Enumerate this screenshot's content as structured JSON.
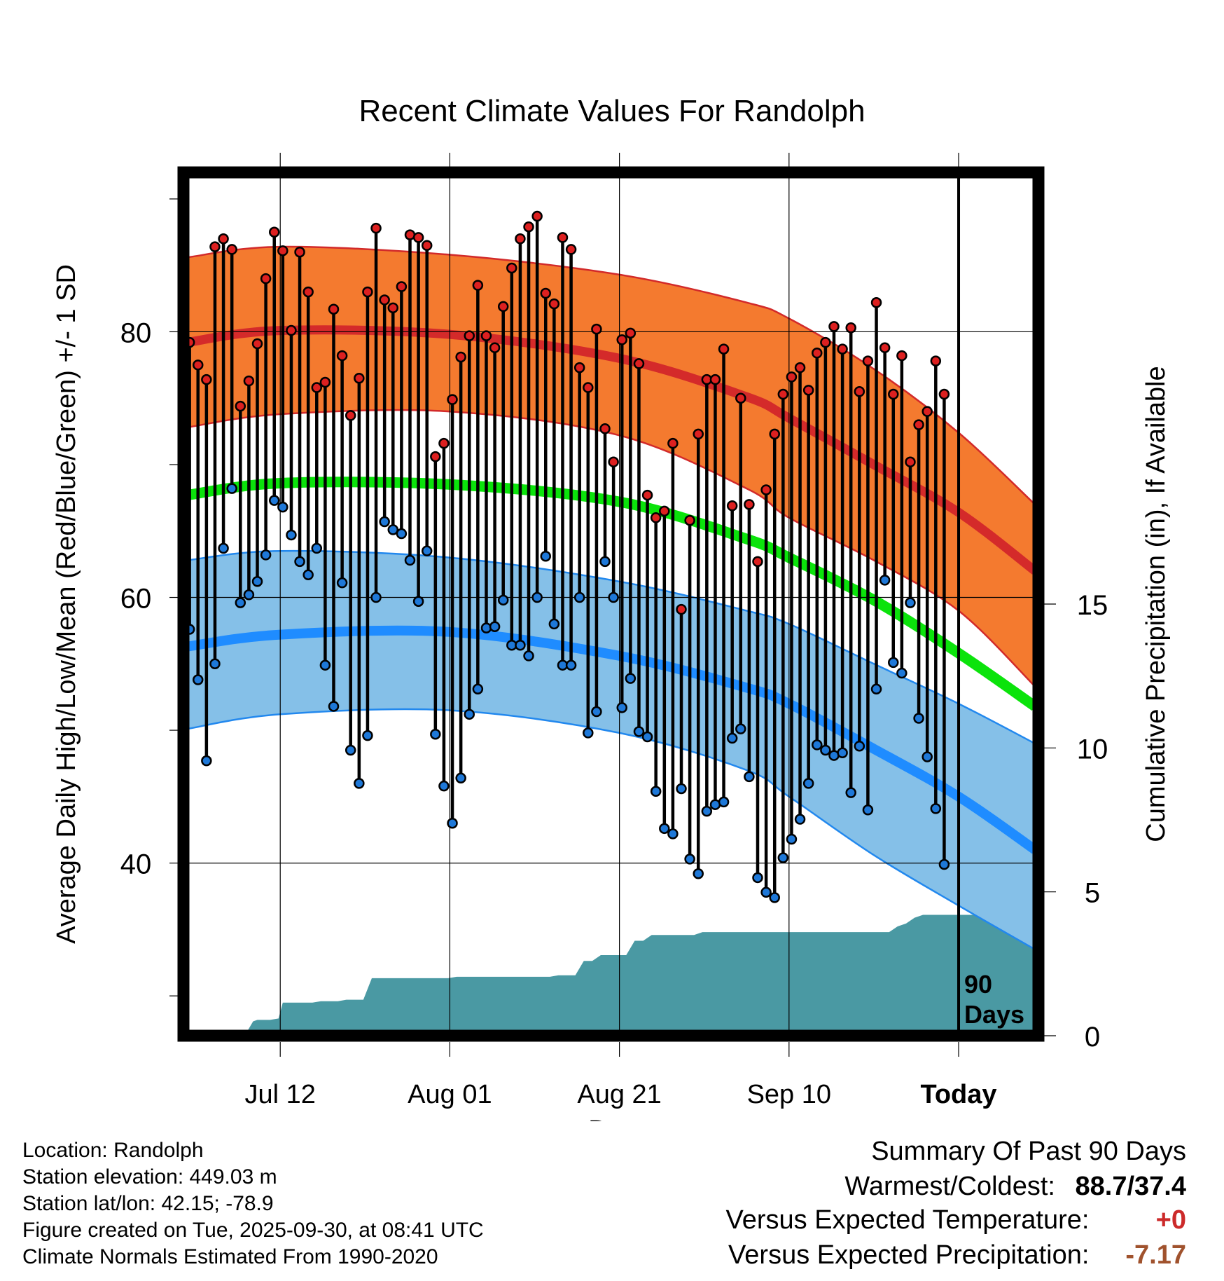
{
  "chart_data": {
    "type": "line",
    "title": "Recent Climate Values For Randolph",
    "xlabel": "Day",
    "ylabel": "Average Daily High/Low/Mean (Red/Blue/Green) +/- 1 SD",
    "y2label": "Cumulative Precipitation (in), If Available",
    "xlim": [
      -11,
      89
    ],
    "ylim": [
      27,
      92
    ],
    "y2lim": [
      0,
      30
    ],
    "x_ticks": [
      {
        "x": 0,
        "label": "Jul 12"
      },
      {
        "x": 20,
        "label": "Aug 01"
      },
      {
        "x": 40,
        "label": "Aug 21"
      },
      {
        "x": 60,
        "label": "Sep 10"
      },
      {
        "x": 80,
        "label": "Today"
      }
    ],
    "y_ticks": [
      40,
      60,
      80
    ],
    "y2_ticks": [
      0,
      5,
      10,
      15
    ],
    "today_x": 80,
    "window_label": [
      "90",
      "Days"
    ],
    "normals": {
      "days": [
        -11,
        0,
        20,
        40,
        55,
        60,
        70,
        80,
        89
      ],
      "high_mean": [
        79.2,
        80.1,
        79.8,
        78.0,
        75.1,
        73.5,
        70.0,
        66.4,
        62.0
      ],
      "high_upper": [
        85.6,
        86.4,
        85.8,
        84.3,
        82.2,
        81.0,
        77.2,
        72.4,
        67.0
      ],
      "high_lower": [
        72.8,
        73.8,
        74.0,
        72.2,
        68.2,
        66.0,
        62.8,
        59.0,
        53.3
      ],
      "mean_mean": [
        67.7,
        68.6,
        68.5,
        67.2,
        64.4,
        63.0,
        59.8,
        55.8,
        51.8
      ],
      "low_mean": [
        56.3,
        57.2,
        57.4,
        55.6,
        53.2,
        52.0,
        48.6,
        45.0,
        41.0
      ],
      "low_upper": [
        62.8,
        63.5,
        63.0,
        61.2,
        59.0,
        58.0,
        55.0,
        52.0,
        49.0
      ],
      "low_lower": [
        50.1,
        51.2,
        51.5,
        49.8,
        47.0,
        45.0,
        40.6,
        36.8,
        33.5
      ]
    },
    "series": [
      {
        "name": "Daily High",
        "color": "#dd2020",
        "values": [
          79.2,
          77.5,
          76.4,
          86.4,
          87.0,
          86.2,
          74.4,
          76.3,
          79.1,
          84.0,
          87.5,
          86.1,
          80.1,
          86.0,
          83.0,
          75.8,
          76.2,
          81.7,
          78.2,
          73.7,
          76.5,
          83.0,
          87.8,
          82.4,
          81.8,
          83.4,
          87.3,
          87.1,
          86.5,
          70.6,
          71.6,
          74.9,
          78.1,
          79.7,
          83.5,
          79.7,
          78.8,
          81.9,
          84.8,
          87.0,
          87.9,
          88.7,
          82.9,
          82.1,
          87.1,
          86.2,
          77.3,
          75.8,
          80.2,
          72.7,
          70.2,
          79.4,
          79.9,
          77.6,
          67.7,
          66.0,
          66.5,
          71.6,
          59.1,
          65.8,
          72.3,
          76.4,
          76.4,
          78.7,
          66.9,
          75.0,
          67.0,
          62.7,
          68.1,
          72.3,
          75.3,
          76.6,
          77.3,
          75.6,
          78.4,
          79.2,
          80.4,
          78.7,
          80.3,
          75.5,
          77.8,
          82.2,
          78.8,
          75.3,
          78.2,
          70.2,
          73.0,
          74.0,
          77.8,
          75.3
        ]
      },
      {
        "name": "Daily Low",
        "color": "#1e78d8",
        "values": [
          57.6,
          53.8,
          47.7,
          55.0,
          63.7,
          68.2,
          59.6,
          60.2,
          61.2,
          63.2,
          67.3,
          66.8,
          64.7,
          62.7,
          61.7,
          63.7,
          54.9,
          51.8,
          61.1,
          48.5,
          46.0,
          49.6,
          60.0,
          65.7,
          65.1,
          64.8,
          62.8,
          59.7,
          63.5,
          49.7,
          45.8,
          43.0,
          46.4,
          51.2,
          53.1,
          57.7,
          57.8,
          59.8,
          56.4,
          56.4,
          55.6,
          60.0,
          63.1,
          58.0,
          54.9,
          54.9,
          60.0,
          49.8,
          51.4,
          62.7,
          60.0,
          51.7,
          53.9,
          49.9,
          49.5,
          45.4,
          42.6,
          42.2,
          45.6,
          40.3,
          39.2,
          43.9,
          44.4,
          44.6,
          49.4,
          50.1,
          46.5,
          38.9,
          37.8,
          37.4,
          40.4,
          41.8,
          43.3,
          46.0,
          48.9,
          48.5,
          48.1,
          48.3,
          45.3,
          48.8,
          44.0,
          53.1,
          61.3,
          55.1,
          54.3,
          59.6,
          50.9,
          48.0,
          44.1,
          39.9
        ]
      },
      {
        "name": "Cumulative Precipitation",
        "color": "#4a99a3",
        "days": [
          -11,
          -4.2,
          -3.2,
          -2.7,
          -1.2,
          -0.2,
          0.3,
          1,
          2,
          3,
          3.8,
          4.8,
          5.8,
          6.8,
          7.8,
          8.8,
          9.8,
          10.8,
          11.8,
          12.8,
          13.8,
          14.8,
          15.8,
          16.8,
          17.8,
          18.8,
          19.8,
          20.8,
          21.8,
          22.8,
          23.8,
          24.8,
          25.8,
          26.8,
          27.8,
          28.8,
          29.8,
          30.8,
          31.8,
          32.8,
          33.8,
          34.8,
          35.8,
          36.8,
          37.8,
          38.8,
          39.8,
          40.8,
          41.8,
          42.8,
          43.8,
          44.8,
          45.8,
          46.8,
          47.8,
          48.8,
          49.8,
          50.8,
          51.8,
          52.8,
          53.8,
          54.8,
          55.8,
          56.8,
          57.8,
          58.8,
          59.8,
          60.8,
          61.8,
          62.8,
          63.8,
          64.8,
          65.8,
          66.8,
          67.8,
          68.8,
          69.8,
          70.8,
          71.8,
          72.8,
          73.8,
          74.8,
          75.8,
          76.8,
          77.8,
          78.8,
          79.8,
          80.8,
          81.8,
          82.8,
          83.8,
          84.8,
          85.8,
          86.8,
          87.8,
          89
        ],
        "values": [
          0,
          0,
          0.5,
          0.55,
          0.55,
          0.6,
          1.15,
          1.15,
          1.15,
          1.15,
          1.15,
          1.2,
          1.2,
          1.2,
          1.25,
          1.25,
          1.25,
          2.0,
          2.0,
          2.0,
          2.0,
          2.0,
          2.0,
          2.0,
          2.0,
          2.0,
          2.0,
          2.05,
          2.05,
          2.05,
          2.05,
          2.05,
          2.05,
          2.05,
          2.05,
          2.05,
          2.05,
          2.05,
          2.05,
          2.1,
          2.1,
          2.1,
          2.6,
          2.6,
          2.8,
          2.8,
          2.8,
          2.8,
          3.3,
          3.3,
          3.5,
          3.5,
          3.5,
          3.5,
          3.5,
          3.5,
          3.6,
          3.6,
          3.6,
          3.6,
          3.6,
          3.6,
          3.6,
          3.6,
          3.6,
          3.6,
          3.6,
          3.6,
          3.6,
          3.6,
          3.6,
          3.6,
          3.6,
          3.6,
          3.6,
          3.6,
          3.6,
          3.6,
          3.6,
          3.8,
          3.9,
          4.1,
          4.2,
          4.2,
          4.2,
          4.2,
          4.2,
          4.2,
          4.2,
          4.2,
          4.2,
          4.2,
          4.2,
          4.2,
          4.2,
          4.2
        ]
      }
    ],
    "series_colors": {
      "high_band": "#f47a2f",
      "high_edge": "#d22a2a",
      "high_mean": "#d42a2a",
      "mean_line": "#0be30b",
      "low_band": "#85c0e8",
      "low_edge": "#2288ee",
      "low_mean": "#1f8cff",
      "precip": "#4a99a3"
    }
  },
  "info": {
    "location": "Location: Randolph",
    "elevation": "Station elevation: 449.03 m",
    "latlon": "Station lat/lon: 42.15; -78.9",
    "created": "Figure created on Tue, 2025-09-30, at 08:41 UTC",
    "normals": "Climate Normals Estimated From 1990-2020"
  },
  "summary": {
    "heading": "Summary Of Past 90 Days",
    "extremes_label": "Warmest/Coldest:",
    "extremes_value": "88.7/37.4",
    "temp_label": "Versus Expected Temperature:",
    "temp_value": "+0",
    "temp_color": "#cc2a2a",
    "precip_label": "Versus Expected Precipitation:",
    "precip_value": "-7.17",
    "precip_color": "#a0522d"
  }
}
